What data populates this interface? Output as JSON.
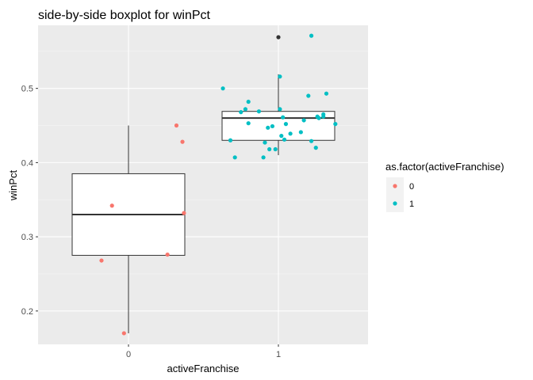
{
  "chart_data": {
    "type": "boxplot",
    "title": "side-by-side boxplot for winPct",
    "xlabel": "activeFranchise",
    "ylabel": "winPct",
    "categories": [
      "0",
      "1"
    ],
    "ylim": [
      0.155,
      0.585
    ],
    "y_ticks": [
      0.2,
      0.3,
      0.4,
      0.5
    ],
    "y_tick_labels": [
      "0.2",
      "0.3",
      "0.4",
      "0.5"
    ],
    "grid": true,
    "legend": {
      "title": "as.factor(activeFranchise)",
      "placement": "right",
      "entries": [
        {
          "label": "0",
          "color": "#F8766D"
        },
        {
          "label": "1",
          "color": "#00BFC4"
        }
      ]
    },
    "boxes": [
      {
        "category": "0",
        "lower_whisker": 0.17,
        "q1": 0.275,
        "median": 0.33,
        "q3": 0.385,
        "upper_whisker": 0.45,
        "outliers": []
      },
      {
        "category": "1",
        "lower_whisker": 0.41,
        "q1": 0.43,
        "median": 0.46,
        "q3": 0.469,
        "upper_whisker": 0.519,
        "outliers": [
          0.569
        ]
      }
    ],
    "points": {
      "0": {
        "color": "#F8766D",
        "x_jitter": [
          -0.18,
          -0.11,
          -0.03,
          0.26,
          0.32,
          0.36,
          0.37
        ],
        "y": [
          0.268,
          0.342,
          0.17,
          0.276,
          0.45,
          0.428,
          0.332
        ]
      },
      "1": {
        "color": "#00BFC4",
        "x_jitter": [
          -0.37,
          -0.32,
          -0.29,
          -0.25,
          -0.22,
          -0.2,
          -0.2,
          -0.13,
          -0.1,
          -0.09,
          -0.07,
          -0.06,
          -0.04,
          -0.02,
          0.01,
          0.01,
          0.02,
          0.03,
          0.04,
          0.05,
          0.08,
          0.15,
          0.17,
          0.2,
          0.22,
          0.22,
          0.25,
          0.26,
          0.27,
          0.3,
          0.3,
          0.32,
          0.38
        ],
        "y": [
          0.5,
          0.43,
          0.407,
          0.468,
          0.472,
          0.482,
          0.453,
          0.469,
          0.407,
          0.427,
          0.447,
          0.418,
          0.449,
          0.418,
          0.516,
          0.472,
          0.436,
          0.461,
          0.431,
          0.452,
          0.439,
          0.441,
          0.457,
          0.49,
          0.571,
          0.429,
          0.42,
          0.462,
          0.46,
          0.465,
          0.462,
          0.493,
          0.452
        ]
      }
    }
  }
}
